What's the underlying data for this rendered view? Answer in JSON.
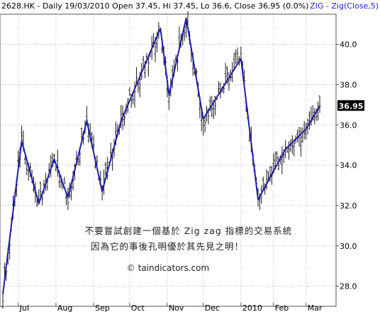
{
  "header": {
    "symbol_info": "2628.HK - Daily 19/03/2010 Open 37.45, Hi 37.45, Lo 36.6, Close 36.95 (0.0%)",
    "indicator": "ZIG - Zig(Close,5)"
  },
  "annotation": {
    "line1": "不要嘗試創建一個基於 Zig zag 指標的交易系統",
    "line2": "因為它的事後孔明優於其先見之明！"
  },
  "watermark": "© taindicators.com",
  "colors": {
    "background": "#ffffff",
    "bars": "#1a1a1a",
    "zigzag": "#1f1fa8",
    "grid": "#b8b8b8",
    "last_price_bg": "#000000"
  },
  "chart_data": {
    "type": "ohlc",
    "title": "",
    "xlabel": "",
    "ylabel": "",
    "x_tick_labels": [
      "Jul",
      "Aug",
      "Sep",
      "Oct",
      "Nov",
      "Dec",
      "2010",
      "Feb",
      "Mar"
    ],
    "y_tick_labels": [
      "28.0",
      "30.0",
      "32.0",
      "34.0",
      "36.0",
      "38.0",
      "40.0"
    ],
    "yticks": [
      28,
      30,
      32,
      34,
      36,
      38,
      40
    ],
    "ylim": [
      27.0,
      41.5
    ],
    "grid": true,
    "last_price": 36.95,
    "last_price_label": "36.95",
    "n_sessions": 186,
    "month_start_index": [
      9,
      31,
      53,
      74,
      96,
      117,
      139,
      158,
      177
    ],
    "zigzag": {
      "name": "ZIG - Zig(Close,5)",
      "index": [
        0,
        11,
        21,
        30,
        38,
        49,
        58,
        69,
        92,
        97,
        107,
        117,
        139,
        149,
        165,
        177,
        185
      ],
      "value": [
        27.6,
        35.2,
        32.1,
        34.3,
        32.4,
        36.2,
        32.7,
        36.2,
        40.8,
        37.5,
        41.3,
        36.3,
        39.3,
        32.3,
        34.8,
        35.8,
        36.95
      ]
    },
    "last_ohlc": {
      "open": 37.45,
      "high": 37.45,
      "low": 36.6,
      "close": 36.95
    }
  }
}
